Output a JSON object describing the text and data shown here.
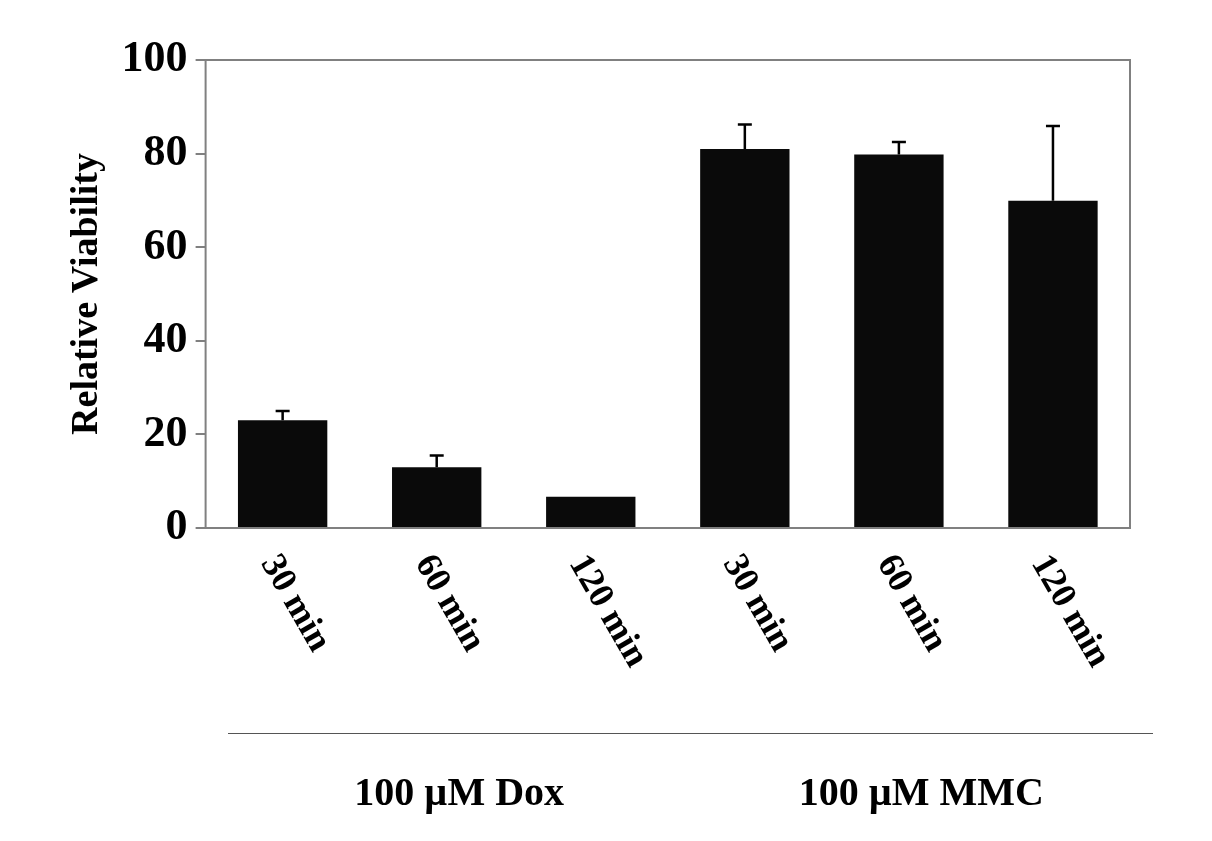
{
  "chart_data": {
    "type": "bar",
    "ylabel": "Relative Viability",
    "categories": [
      "30 min",
      "60 min",
      "120 min",
      "30 min",
      "60 min",
      "120 min"
    ],
    "series": [
      {
        "color": "#0a0a0a",
        "values": [
          23,
          13,
          6.7,
          81,
          79.8,
          69.9
        ],
        "errors": [
          [
            23,
            25
          ],
          [
            13,
            15.5
          ],
          null,
          [
            81,
            86.2
          ],
          [
            79.8,
            82.5
          ],
          [
            69.9,
            85.9
          ]
        ]
      }
    ],
    "ylim": [
      0,
      100
    ],
    "yticks": [
      0,
      20,
      40,
      60,
      80,
      100
    ],
    "grid": false,
    "legend": false,
    "annotations": [
      "100 µM Dox",
      "100 µM MMC"
    ]
  }
}
